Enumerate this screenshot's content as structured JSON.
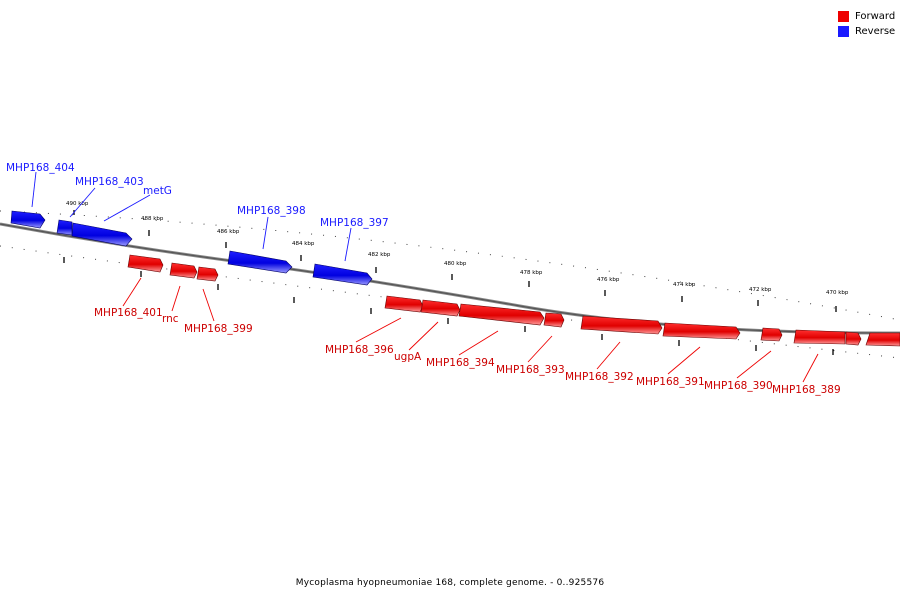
{
  "legend": {
    "forward_label": "Forward",
    "reverse_label": "Reverse",
    "forward_color": "#ee0000",
    "reverse_color": "#1a1aff"
  },
  "caption": "Mycoplasma hyopneumoniae 168, complete genome. - 0..925576",
  "axis_ticks": [
    "490 kbp",
    "488 kbp",
    "486 kbp",
    "484 kbp",
    "482 kbp",
    "480 kbp",
    "478 kbp",
    "476 kbp",
    "474 kbp",
    "472 kbp",
    "470 kbp"
  ],
  "reverse_genes": [
    "MHP168_404",
    "MHP168_403",
    "metG",
    "MHP168_398",
    "MHP168_397"
  ],
  "forward_genes": [
    "MHP168_401",
    "rnc",
    "MHP168_399",
    "MHP168_396",
    "ugpA",
    "MHP168_394",
    "MHP168_393",
    "MHP168_392",
    "MHP168_391",
    "MHP168_390",
    "MHP168_389"
  ]
}
